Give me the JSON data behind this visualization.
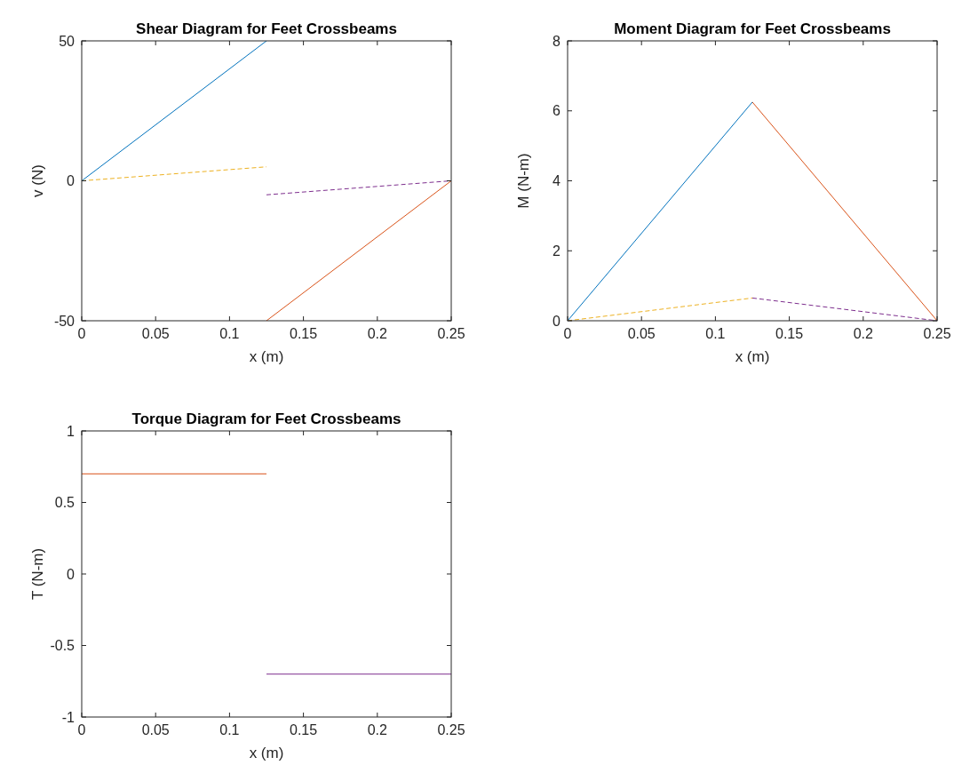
{
  "chart_data": [
    {
      "type": "line",
      "title": "Shear Diagram for Feet Crossbeams",
      "xlabel": "x (m)",
      "ylabel": "v (N)",
      "xlim": [
        0,
        0.25
      ],
      "xticks": [
        0,
        0.05,
        0.1,
        0.15,
        0.2,
        0.25
      ],
      "ylim": [
        -50,
        50
      ],
      "yticks": [
        -50,
        0,
        50
      ],
      "series": [
        {
          "color": "#0072bd",
          "line_style": "solid",
          "x": [
            0,
            0.125
          ],
          "values": [
            0,
            50
          ]
        },
        {
          "color": "#d95319",
          "line_style": "solid",
          "x": [
            0.125,
            0.25
          ],
          "values": [
            -50,
            0
          ]
        },
        {
          "color": "#edb120",
          "line_style": "dashed",
          "x": [
            0,
            0.125
          ],
          "values": [
            0,
            5
          ]
        },
        {
          "color": "#7e2f8e",
          "line_style": "dashed",
          "x": [
            0.125,
            0.25
          ],
          "values": [
            -5,
            0
          ]
        }
      ]
    },
    {
      "type": "line",
      "title": "Moment Diagram for Feet Crossbeams",
      "xlabel": "x (m)",
      "ylabel": "M (N-m)",
      "xlim": [
        0,
        0.25
      ],
      "xticks": [
        0,
        0.05,
        0.1,
        0.15,
        0.2,
        0.25
      ],
      "ylim": [
        0,
        8
      ],
      "yticks": [
        0,
        2,
        4,
        6,
        8
      ],
      "series": [
        {
          "color": "#0072bd",
          "line_style": "solid",
          "x": [
            0,
            0.125
          ],
          "values": [
            0,
            6.25
          ]
        },
        {
          "color": "#d95319",
          "line_style": "solid",
          "x": [
            0.125,
            0.25
          ],
          "values": [
            6.25,
            0
          ]
        },
        {
          "color": "#edb120",
          "line_style": "dashed",
          "x": [
            0,
            0.125
          ],
          "values": [
            0,
            0.65
          ]
        },
        {
          "color": "#7e2f8e",
          "line_style": "dashed",
          "x": [
            0.125,
            0.25
          ],
          "values": [
            0.65,
            0
          ]
        }
      ]
    },
    {
      "type": "line",
      "title": "Torque Diagram for Feet Crossbeams",
      "xlabel": "x (m)",
      "ylabel": "T (N-m)",
      "xlim": [
        0,
        0.25
      ],
      "xticks": [
        0,
        0.05,
        0.1,
        0.15,
        0.2,
        0.25
      ],
      "ylim": [
        -1,
        1
      ],
      "yticks": [
        -1,
        -0.5,
        0,
        0.5,
        1
      ],
      "series": [
        {
          "color": "#d95319",
          "line_style": "solid",
          "x": [
            0,
            0.125
          ],
          "values": [
            0.7,
            0.7
          ]
        },
        {
          "color": "#7e2f8e",
          "line_style": "solid",
          "x": [
            0.125,
            0.25
          ],
          "values": [
            -0.7,
            -0.7
          ]
        }
      ]
    }
  ]
}
